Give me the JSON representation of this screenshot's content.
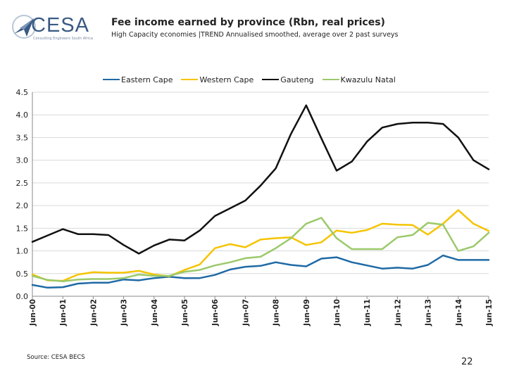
{
  "header": {
    "logo_text": "CESA",
    "logo_tagline": "Consulting Engineers South Africa",
    "title": "Fee income earned by province (Rbn, real prices)",
    "subtitle": "High Capacity economies |TREND Annualised smoothed, average over 2 past surveys"
  },
  "footer": {
    "source": "Source: CESA BECS",
    "page_number": "22"
  },
  "chart_data": {
    "type": "line",
    "title": "Fee income earned by province (Rbn, real prices)",
    "xlabel": "",
    "ylabel": "",
    "ylim": [
      0,
      4.5
    ],
    "y_ticks": [
      "0.0",
      "0.5",
      "1.0",
      "1.5",
      "2.0",
      "2.5",
      "3.0",
      "3.5",
      "4.0",
      "4.5"
    ],
    "y_tick_values": [
      0,
      0.5,
      1.0,
      1.5,
      2.0,
      2.5,
      3.0,
      3.5,
      4.0,
      4.5
    ],
    "grid": "horizontal",
    "legend_position": "top",
    "x_tick_labels": [
      "Jun-00",
      "Jun-01",
      "Jun-02",
      "Jun-03",
      "Jun-04",
      "Jun-05",
      "Jun-06",
      "Jun-07",
      "Jun-08",
      "Jun-09",
      "Jun-10",
      "Jun-11",
      "Jun-12",
      "Jun-13",
      "Jun-14",
      "Jun-15"
    ],
    "x": [
      0,
      0.5,
      1,
      1.5,
      2,
      2.5,
      3,
      3.5,
      4,
      4.5,
      5,
      5.5,
      6,
      6.5,
      7,
      7.5,
      8,
      8.5,
      9,
      9.5,
      10,
      10.5,
      11,
      11.5,
      12,
      12.5,
      13,
      13.5,
      14,
      14.5,
      15
    ],
    "series": [
      {
        "name": "Eastern Cape",
        "color": "#1f6aa5",
        "values": [
          0.25,
          0.19,
          0.2,
          0.28,
          0.3,
          0.3,
          0.37,
          0.35,
          0.4,
          0.43,
          0.4,
          0.4,
          0.47,
          0.59,
          0.65,
          0.67,
          0.75,
          0.69,
          0.66,
          0.83,
          0.86,
          0.75,
          0.68,
          0.61,
          0.63,
          0.61,
          0.69,
          0.9,
          0.8,
          0.8,
          0.8
        ]
      },
      {
        "name": "Western Cape",
        "color": "#f5c400",
        "values": [
          0.48,
          0.35,
          0.34,
          0.48,
          0.53,
          0.52,
          0.52,
          0.56,
          0.48,
          0.44,
          0.58,
          0.7,
          1.06,
          1.15,
          1.08,
          1.25,
          1.28,
          1.3,
          1.13,
          1.19,
          1.45,
          1.4,
          1.46,
          1.6,
          1.58,
          1.57,
          1.36,
          1.6,
          1.9,
          1.6,
          1.44
        ]
      },
      {
        "name": "Gauteng",
        "color": "#111111",
        "values": [
          1.2,
          1.34,
          1.48,
          1.37,
          1.37,
          1.35,
          1.13,
          0.94,
          1.12,
          1.25,
          1.23,
          1.45,
          1.77,
          1.94,
          2.11,
          2.44,
          2.82,
          3.58,
          4.21,
          3.48,
          2.77,
          2.97,
          3.41,
          3.72,
          3.8,
          3.83,
          3.83,
          3.8,
          3.5,
          3.0,
          2.8
        ]
      },
      {
        "name": "Kwazulu Natal",
        "color": "#9bc96a",
        "values": [
          0.45,
          0.36,
          0.33,
          0.37,
          0.38,
          0.38,
          0.4,
          0.48,
          0.45,
          0.45,
          0.54,
          0.58,
          0.68,
          0.75,
          0.84,
          0.87,
          1.06,
          1.28,
          1.6,
          1.73,
          1.28,
          1.04,
          1.04,
          1.04,
          1.3,
          1.35,
          1.62,
          1.58,
          1.0,
          1.1,
          1.4
        ]
      }
    ]
  }
}
